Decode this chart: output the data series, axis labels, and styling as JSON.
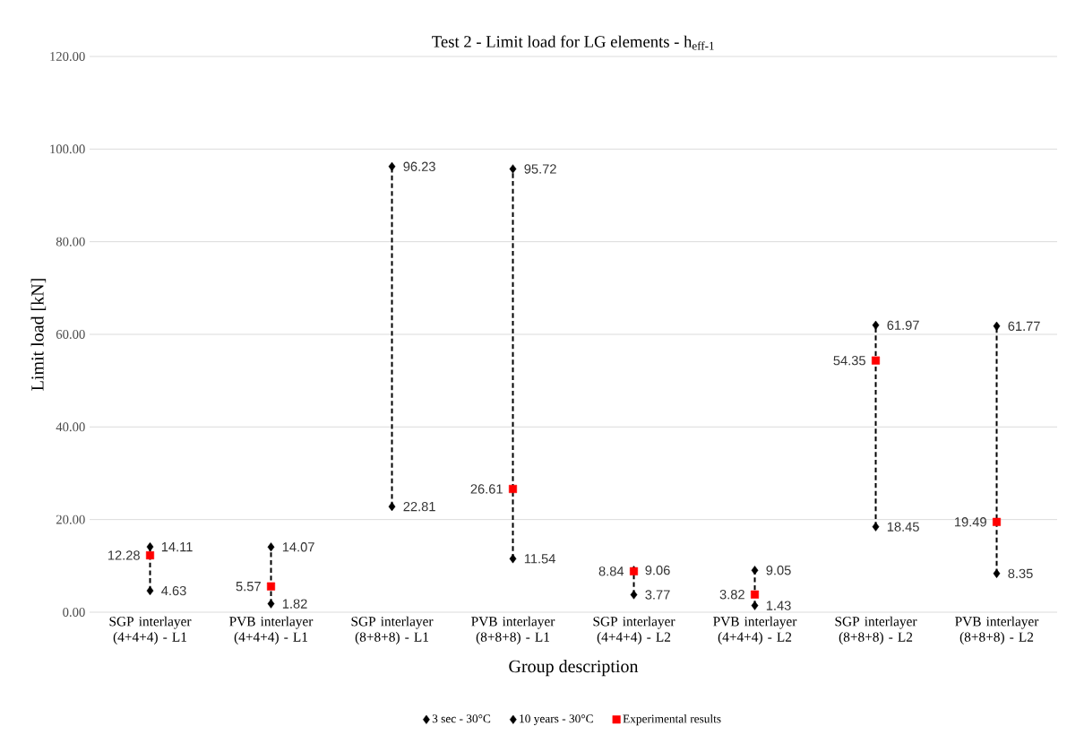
{
  "chart_data": {
    "type": "scatter",
    "title": "Test 2 - Limit load for LG elements - h$_{eff-1}$",
    "xlabel": "Group description",
    "ylabel": "Limit load [kN]",
    "categories": [
      "SGP interlayer (4+4+4) - L1",
      "PVB interlayer (4+4+4) - L1",
      "SGP interlayer (8+8+8) - L1",
      "PVB interlayer (8+8+8) - L1",
      "SGP interlayer (4+4+4) - L2",
      "PVB interlayer (4+4+4) - L2",
      "SGP interlayer (8+8+8) - L2",
      "PVB interlayer (8+8+8) - L2"
    ],
    "series": [
      {
        "name": "3 sec  - 30°C",
        "color": "#000000",
        "marker": "diamond",
        "values": [
          14.11,
          14.07,
          96.23,
          95.72,
          9.06,
          9.05,
          61.97,
          61.77
        ],
        "value_labels": [
          "14.11",
          "14.07",
          "96.23",
          "95.72",
          "9.06",
          "9.05",
          "61.97",
          "61.77"
        ]
      },
      {
        "name": "10 years - 30°C",
        "color": "#000000",
        "marker": "diamond",
        "values": [
          4.63,
          1.82,
          22.81,
          11.54,
          3.77,
          1.43,
          18.45,
          8.35
        ],
        "value_labels": [
          "4.63",
          "1.82",
          "22.81",
          "11.54",
          "3.77",
          "1.43",
          "18.45",
          "8.35"
        ]
      },
      {
        "name": "Experimental results",
        "color": "#ff0000",
        "marker": "square",
        "values": [
          12.28,
          5.57,
          null,
          26.61,
          8.84,
          3.82,
          54.35,
          19.49
        ],
        "value_labels": [
          "12.28",
          "5.57",
          null,
          "26.61",
          "8.84",
          "3.82",
          "54.35",
          "19.49"
        ]
      }
    ],
    "ylim": [
      0,
      120
    ],
    "yticks": [
      {
        "value": 0,
        "label": "0.00"
      },
      {
        "value": 20,
        "label": "20.00"
      },
      {
        "value": 40,
        "label": "40.00"
      },
      {
        "value": 60,
        "label": "60.00"
      },
      {
        "value": 80,
        "label": "80.00"
      },
      {
        "value": 100,
        "label": "100.00"
      },
      {
        "value": 120,
        "label": "120.00"
      }
    ],
    "grid": "y",
    "legend": "bottom",
    "line_style": "dashed"
  }
}
